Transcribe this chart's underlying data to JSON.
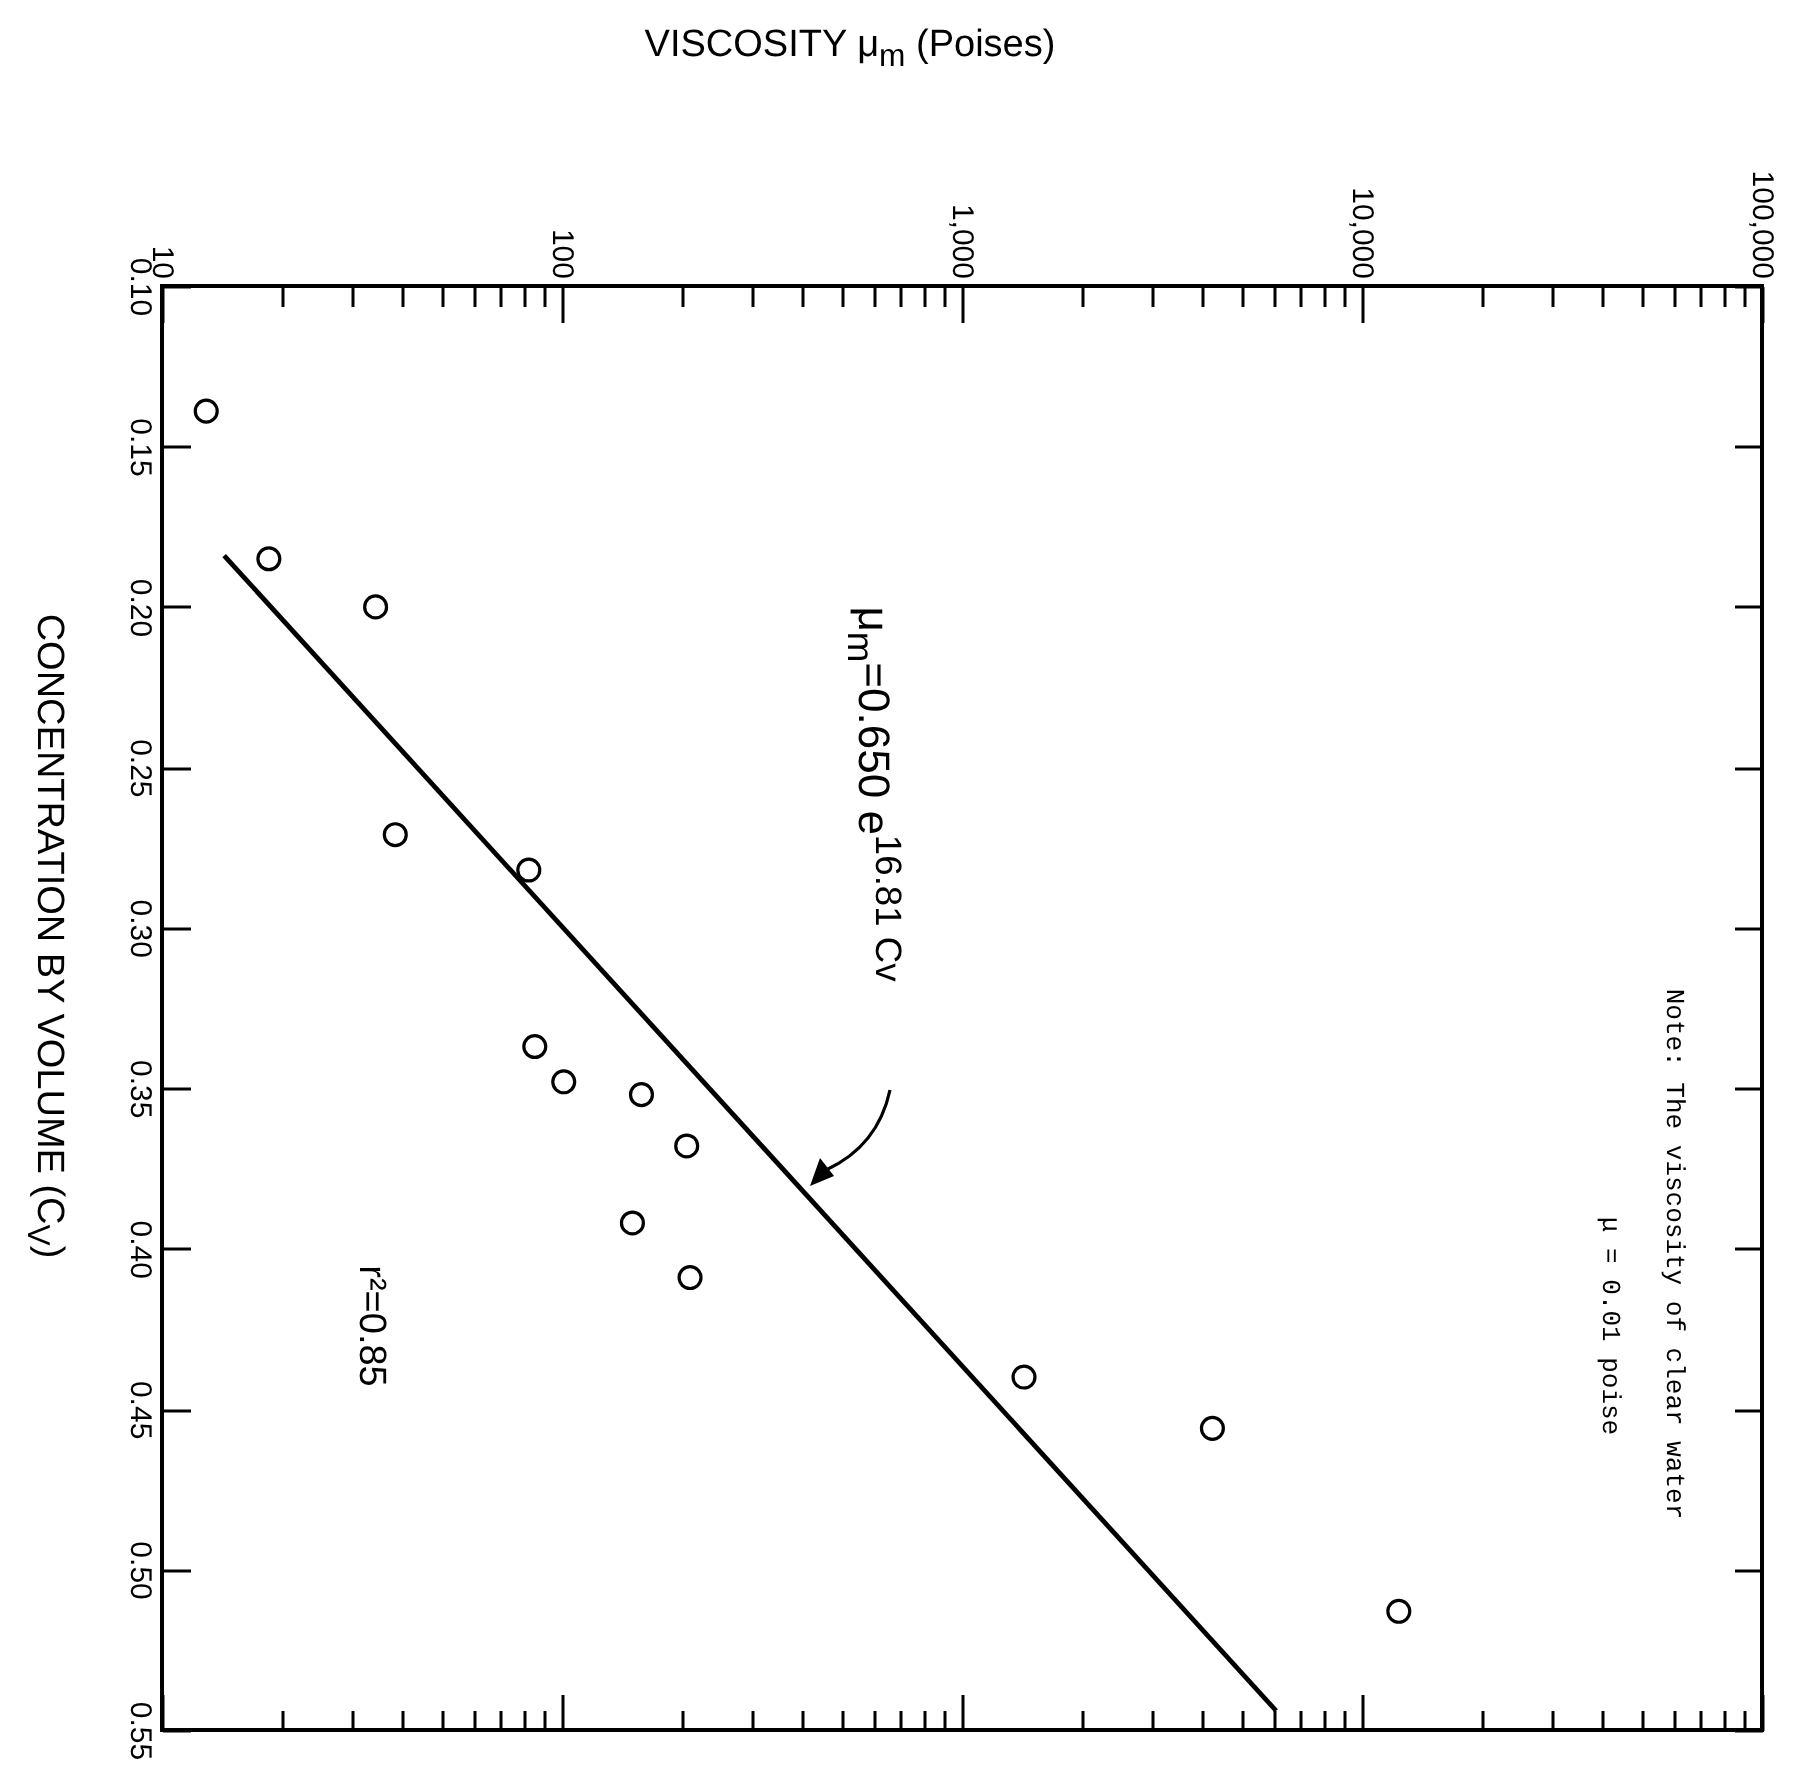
{
  "chart_data": {
    "type": "scatter",
    "xlabel": "VISCOSITY μ$_{m}$ (Poises)",
    "ylabel": "CONCENTRATION BY VOLUME (C$_{V}$)",
    "log": "x",
    "xlim": [
      10,
      100000
    ],
    "xticks": [
      10,
      {
        "value": 20,
        "label": null
      },
      {
        "value": 30,
        "label": null
      },
      {
        "value": 40,
        "label": null
      },
      {
        "value": 50,
        "label": null
      },
      {
        "value": 60,
        "label": null
      },
      {
        "value": 70,
        "label": null
      },
      {
        "value": 80,
        "label": null
      },
      {
        "value": 90,
        "label": null
      },
      100,
      {
        "value": 200,
        "label": null
      },
      {
        "value": 300,
        "label": null
      },
      {
        "value": 400,
        "label": null
      },
      {
        "value": 500,
        "label": null
      },
      {
        "value": 600,
        "label": null
      },
      {
        "value": 700,
        "label": null
      },
      {
        "value": 800,
        "label": null
      },
      {
        "value": 900,
        "label": null
      },
      {
        "value": 1000,
        "label": "1,000"
      },
      {
        "value": 2000,
        "label": null
      },
      {
        "value": 3000,
        "label": null
      },
      {
        "value": 4000,
        "label": null
      },
      {
        "value": 5000,
        "label": null
      },
      {
        "value": 6000,
        "label": null
      },
      {
        "value": 7000,
        "label": null
      },
      {
        "value": 8000,
        "label": null
      },
      {
        "value": 9000,
        "label": null
      },
      {
        "value": 10000,
        "label": "10,000"
      },
      {
        "value": 20000,
        "label": null
      },
      {
        "value": 30000,
        "label": null
      },
      {
        "value": 40000,
        "label": null
      },
      {
        "value": 50000,
        "label": null
      },
      {
        "value": 60000,
        "label": null
      },
      {
        "value": 70000,
        "label": null
      },
      {
        "value": 80000,
        "label": null
      },
      {
        "value": 90000,
        "label": null
      },
      {
        "value": 100000,
        "label": "100,000"
      }
    ],
    "ylim": [
      0.55,
      0.1
    ],
    "yticks": [
      {
        "value": 0.1,
        "label": "0.10"
      },
      0.15,
      {
        "value": 0.2,
        "label": "0.20"
      },
      0.25,
      {
        "value": 0.3,
        "label": "0.30"
      },
      0.35,
      {
        "value": 0.4,
        "label": "0.40"
      },
      0.45,
      {
        "value": 0.5,
        "label": "0.50"
      },
      0.55
    ],
    "series": [
      {
        "marker": "circle",
        "color": "#000000",
        "x": [
          12.9,
          18.5,
          34.2,
          38.3,
          82.6,
          85.5,
          101,
          158,
          205,
          150,
          209,
          1429,
          4227,
          12360
        ],
        "values": [
          0.139,
          0.185,
          0.2,
          0.271,
          0.282,
          0.337,
          0.348,
          0.352,
          0.368,
          0.392,
          0.409,
          0.44,
          0.456,
          0.513
        ]
      },
      {
        "type": "line",
        "color": "#000000",
        "x": [
          14.3,
          6100
        ],
        "values": [
          0.184,
          0.544
        ]
      }
    ],
    "annotations": [
      "μ$_{m}$=0.650 e$^{16.81 Cv}$",
      "r²=0.85",
      "Note:  The viscosity of clear water",
      "μ = 0.01 poise"
    ]
  }
}
